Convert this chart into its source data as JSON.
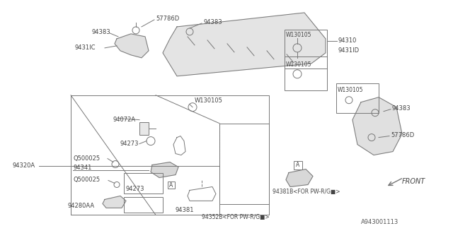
{
  "bg_color": "#ffffff",
  "line_color": "#777777",
  "text_color": "#444444",
  "diagram_id": "A943001113",
  "figsize": [
    6.4,
    3.2
  ],
  "dpi": 100,
  "xlim": [
    0,
    640
  ],
  "ylim": [
    0,
    320
  ]
}
